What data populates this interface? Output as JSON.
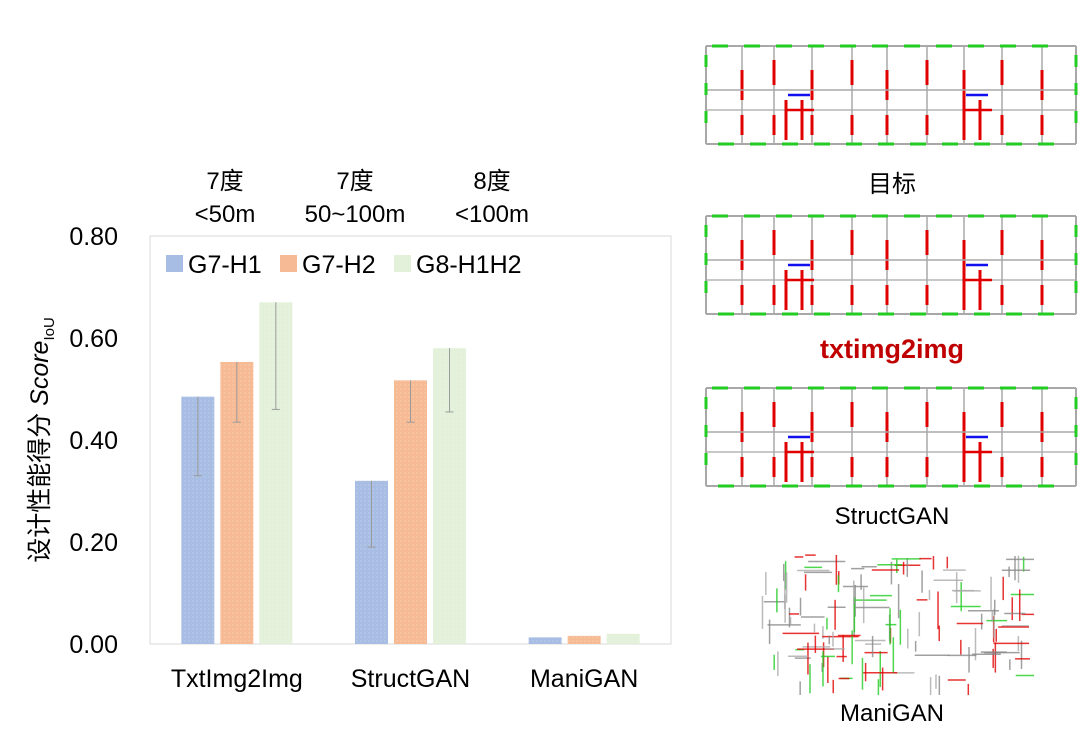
{
  "chart_data": {
    "type": "bar",
    "ylabel_main": "设计性能得分 ",
    "ylabel_italic": "Score",
    "ylabel_sub": "IoU",
    "categories": [
      "TxtImg2Img",
      "StructGAN",
      "ManiGAN"
    ],
    "ylim": [
      0,
      0.8
    ],
    "yticks": [
      "0.00",
      "0.20",
      "0.40",
      "0.60",
      "0.80"
    ],
    "series": [
      {
        "name": "G7-H1",
        "color": "#a8bde3",
        "values": [
          0.485,
          0.32,
          0.013
        ],
        "err_low": [
          0.33,
          0.19,
          null
        ],
        "err_high": [
          0.485,
          0.32,
          null
        ]
      },
      {
        "name": "G7-H2",
        "color": "#f6bb94",
        "values": [
          0.553,
          0.517,
          0.016
        ],
        "err_low": [
          0.435,
          0.435,
          null
        ],
        "err_high": [
          0.553,
          0.517,
          null
        ]
      },
      {
        "name": "G8-H1H2",
        "color": "#e3f1db",
        "values": [
          0.67,
          0.58,
          0.02
        ],
        "err_low": [
          0.46,
          0.455,
          null
        ],
        "err_high": [
          0.67,
          0.58,
          null
        ]
      }
    ],
    "legend": "top-left"
  },
  "conditions": [
    {
      "line1": "7度",
      "line2": "<50m"
    },
    {
      "line1": "7度",
      "line2": "50~100m"
    },
    {
      "line1": "8度",
      "line2": "<100m"
    }
  ],
  "panels": [
    {
      "label": "目标"
    },
    {
      "label": "txtimg2img"
    },
    {
      "label": "StructGAN"
    },
    {
      "label": "ManiGAN"
    }
  ]
}
